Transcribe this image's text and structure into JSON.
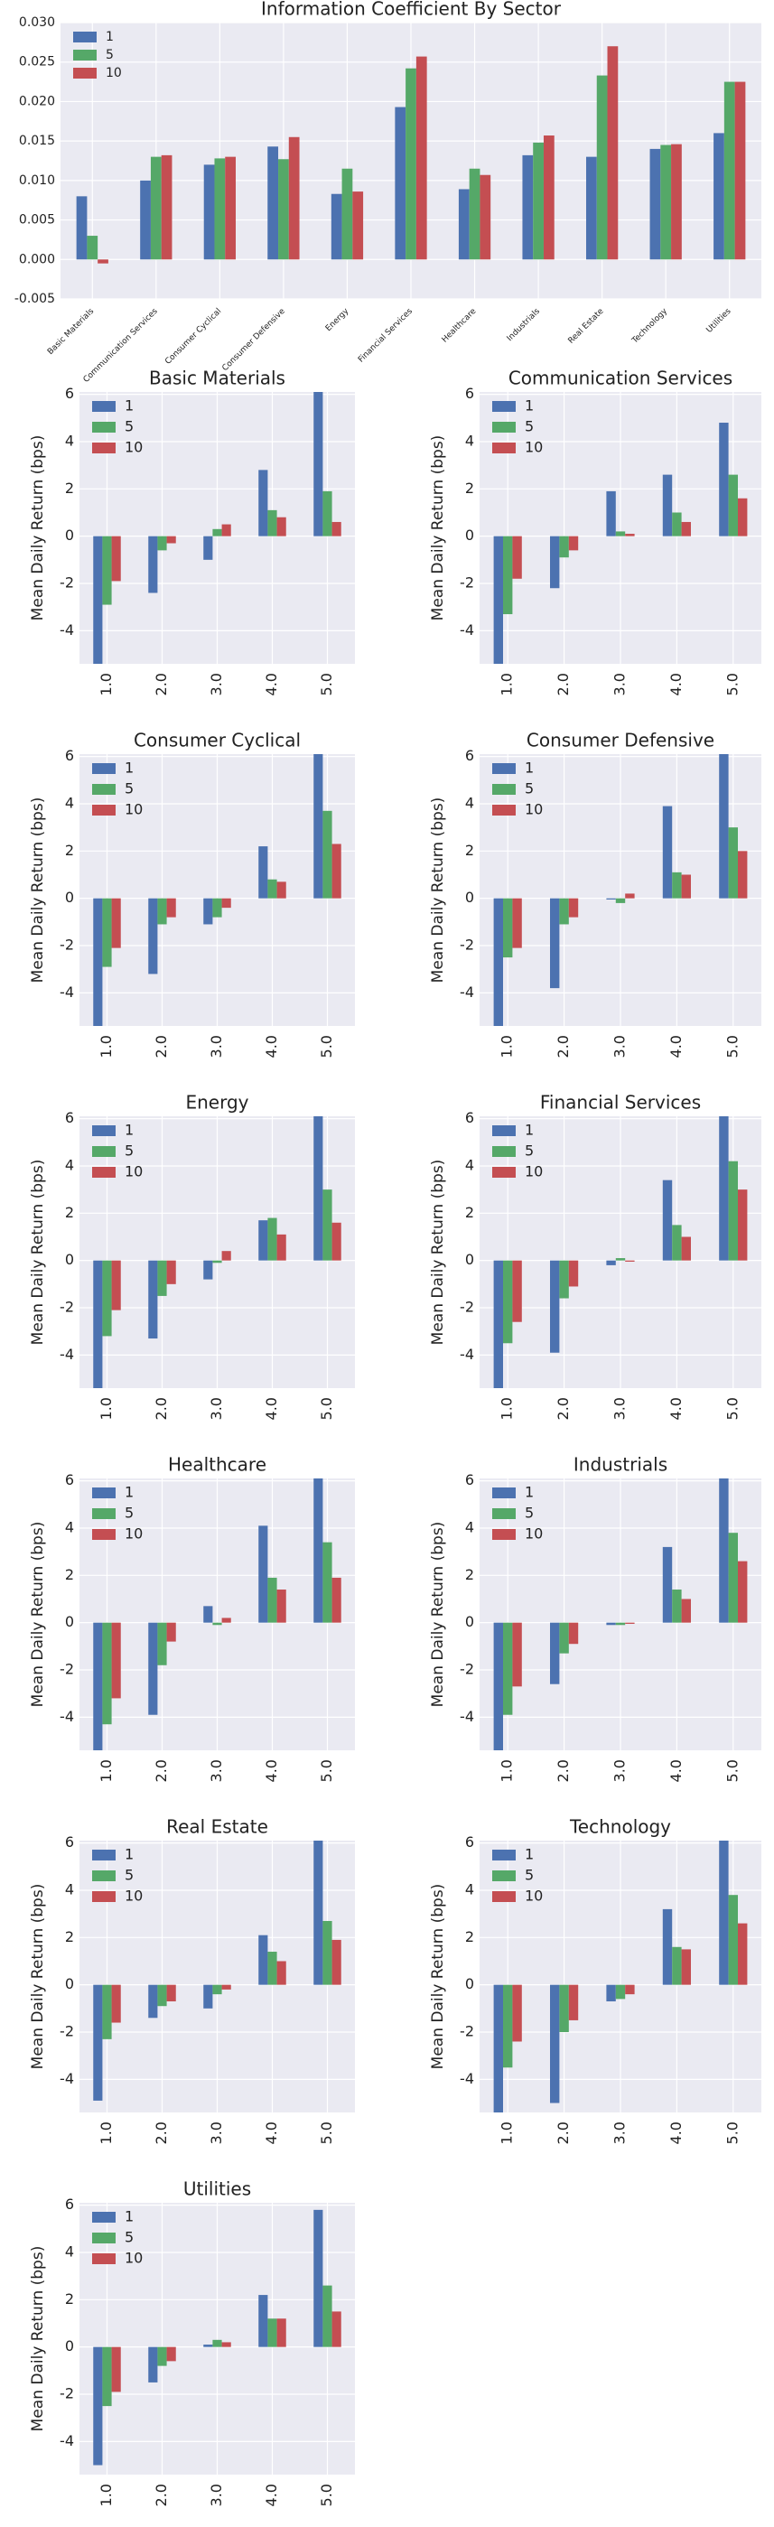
{
  "chart_data": [
    {
      "type": "bar",
      "title": "Information Coefficient By Sector",
      "categories": [
        "Basic Materials",
        "Communication Services",
        "Consumer Cyclical",
        "Consumer Defensive",
        "Energy",
        "Financial Services",
        "Healthcare",
        "Industrials",
        "Real Estate",
        "Technology",
        "Utilities"
      ],
      "series": [
        {
          "name": "1",
          "color": "#4c72b0",
          "values": [
            0.008,
            0.01,
            0.012,
            0.0143,
            0.0083,
            0.0193,
            0.0089,
            0.0132,
            0.013,
            0.014,
            0.016
          ]
        },
        {
          "name": "5",
          "color": "#55a868",
          "values": [
            0.003,
            0.013,
            0.0128,
            0.0127,
            0.0115,
            0.0242,
            0.0115,
            0.0148,
            0.0233,
            0.0145,
            0.0225
          ]
        },
        {
          "name": "10",
          "color": "#c44e52",
          "values": [
            -0.0005,
            0.0132,
            0.013,
            0.0155,
            0.0086,
            0.0257,
            0.0107,
            0.0157,
            0.027,
            0.0146,
            0.0225
          ]
        }
      ],
      "ylim": [
        -0.005,
        0.03
      ],
      "yticks": [
        -0.005,
        {
          "value": 0,
          "label": "0.000"
        },
        0.005,
        {
          "value": 0.01,
          "label": "0.010"
        },
        0.015,
        {
          "value": 0.02,
          "label": "0.020"
        },
        0.025,
        {
          "value": 0.03,
          "label": "0.030"
        }
      ],
      "grid": true,
      "legend": "upper left"
    },
    {
      "type": "bar",
      "title": "Basic Materials",
      "ylabel": "Mean Daily Return (bps)",
      "categories": [
        "1.0",
        "2.0",
        "3.0",
        "4.0",
        "5.0"
      ],
      "series": [
        {
          "name": "1",
          "color": "#4c72b0",
          "values": [
            -5.5,
            -2.4,
            -1.0,
            2.8,
            6.5
          ]
        },
        {
          "name": "5",
          "color": "#55a868",
          "values": [
            -2.9,
            -0.6,
            0.3,
            1.1,
            1.9
          ]
        },
        {
          "name": "10",
          "color": "#c44e52",
          "values": [
            -1.9,
            -0.3,
            0.5,
            0.8,
            0.6
          ]
        }
      ],
      "ylim": [
        -5.4,
        6.1
      ],
      "yticks": [
        -4,
        -2,
        0,
        2,
        4,
        6
      ],
      "grid": true,
      "legend": "upper left"
    },
    {
      "type": "bar",
      "title": "Communication Services",
      "ylabel": "Mean Daily Return (bps)",
      "categories": [
        "1.0",
        "2.0",
        "3.0",
        "4.0",
        "5.0"
      ],
      "series": [
        {
          "name": "1",
          "color": "#4c72b0",
          "values": [
            -5.5,
            -2.2,
            1.9,
            2.6,
            4.8
          ]
        },
        {
          "name": "5",
          "color": "#55a868",
          "values": [
            -3.3,
            -0.9,
            0.2,
            1.0,
            2.6
          ]
        },
        {
          "name": "10",
          "color": "#c44e52",
          "values": [
            -1.8,
            -0.6,
            0.1,
            0.6,
            1.6
          ]
        }
      ],
      "ylim": [
        -5.4,
        6.1
      ],
      "yticks": [
        -4,
        -2,
        0,
        2,
        4,
        6
      ],
      "grid": true,
      "legend": "upper left"
    },
    {
      "type": "bar",
      "title": "Consumer Cyclical",
      "ylabel": "Mean Daily Return (bps)",
      "categories": [
        "1.0",
        "2.0",
        "3.0",
        "4.0",
        "5.0"
      ],
      "series": [
        {
          "name": "1",
          "color": "#4c72b0",
          "values": [
            -5.5,
            -3.2,
            -1.1,
            2.2,
            6.5
          ]
        },
        {
          "name": "5",
          "color": "#55a868",
          "values": [
            -2.9,
            -1.1,
            -0.8,
            0.8,
            3.7
          ]
        },
        {
          "name": "10",
          "color": "#c44e52",
          "values": [
            -2.1,
            -0.8,
            -0.4,
            0.7,
            2.3
          ]
        }
      ],
      "ylim": [
        -5.4,
        6.1
      ],
      "yticks": [
        -4,
        -2,
        0,
        2,
        4,
        6
      ],
      "grid": true,
      "legend": "upper left"
    },
    {
      "type": "bar",
      "title": "Consumer Defensive",
      "ylabel": "Mean Daily Return (bps)",
      "categories": [
        "1.0",
        "2.0",
        "3.0",
        "4.0",
        "5.0"
      ],
      "series": [
        {
          "name": "1",
          "color": "#4c72b0",
          "values": [
            -5.5,
            -3.8,
            -0.05,
            3.9,
            6.5
          ]
        },
        {
          "name": "5",
          "color": "#55a868",
          "values": [
            -2.5,
            -1.1,
            -0.2,
            1.1,
            3.0
          ]
        },
        {
          "name": "10",
          "color": "#c44e52",
          "values": [
            -2.1,
            -0.8,
            0.2,
            1.0,
            2.0
          ]
        }
      ],
      "ylim": [
        -5.4,
        6.1
      ],
      "yticks": [
        -4,
        -2,
        0,
        2,
        4,
        6
      ],
      "grid": true,
      "legend": "upper left"
    },
    {
      "type": "bar",
      "title": "Energy",
      "ylabel": "Mean Daily Return (bps)",
      "categories": [
        "1.0",
        "2.0",
        "3.0",
        "4.0",
        "5.0"
      ],
      "series": [
        {
          "name": "1",
          "color": "#4c72b0",
          "values": [
            -5.5,
            -3.3,
            -0.8,
            1.7,
            6.5
          ]
        },
        {
          "name": "5",
          "color": "#55a868",
          "values": [
            -3.2,
            -1.5,
            -0.1,
            1.8,
            3.0
          ]
        },
        {
          "name": "10",
          "color": "#c44e52",
          "values": [
            -2.1,
            -1.0,
            0.4,
            1.1,
            1.6
          ]
        }
      ],
      "ylim": [
        -5.4,
        6.1
      ],
      "yticks": [
        -4,
        -2,
        0,
        2,
        4,
        6
      ],
      "grid": true,
      "legend": "upper left"
    },
    {
      "type": "bar",
      "title": "Financial Services",
      "ylabel": "Mean Daily Return (bps)",
      "categories": [
        "1.0",
        "2.0",
        "3.0",
        "4.0",
        "5.0"
      ],
      "series": [
        {
          "name": "1",
          "color": "#4c72b0",
          "values": [
            -5.5,
            -3.9,
            -0.2,
            3.4,
            6.5
          ]
        },
        {
          "name": "5",
          "color": "#55a868",
          "values": [
            -3.5,
            -1.6,
            0.1,
            1.5,
            4.2
          ]
        },
        {
          "name": "10",
          "color": "#c44e52",
          "values": [
            -2.6,
            -1.1,
            -0.05,
            1.0,
            3.0
          ]
        }
      ],
      "ylim": [
        -5.4,
        6.1
      ],
      "yticks": [
        -4,
        -2,
        0,
        2,
        4,
        6
      ],
      "grid": true,
      "legend": "upper left"
    },
    {
      "type": "bar",
      "title": "Healthcare",
      "ylabel": "Mean Daily Return (bps)",
      "categories": [
        "1.0",
        "2.0",
        "3.0",
        "4.0",
        "5.0"
      ],
      "series": [
        {
          "name": "1",
          "color": "#4c72b0",
          "values": [
            -5.5,
            -3.9,
            0.7,
            4.1,
            6.5
          ]
        },
        {
          "name": "5",
          "color": "#55a868",
          "values": [
            -4.3,
            -1.8,
            -0.1,
            1.9,
            3.4
          ]
        },
        {
          "name": "10",
          "color": "#c44e52",
          "values": [
            -3.2,
            -0.8,
            0.2,
            1.4,
            1.9
          ]
        }
      ],
      "ylim": [
        -5.4,
        6.1
      ],
      "yticks": [
        -4,
        -2,
        0,
        2,
        4,
        6
      ],
      "grid": true,
      "legend": "upper left"
    },
    {
      "type": "bar",
      "title": "Industrials",
      "ylabel": "Mean Daily Return (bps)",
      "categories": [
        "1.0",
        "2.0",
        "3.0",
        "4.0",
        "5.0"
      ],
      "series": [
        {
          "name": "1",
          "color": "#4c72b0",
          "values": [
            -5.5,
            -2.6,
            -0.1,
            3.2,
            6.5
          ]
        },
        {
          "name": "5",
          "color": "#55a868",
          "values": [
            -3.9,
            -1.3,
            -0.1,
            1.4,
            3.8
          ]
        },
        {
          "name": "10",
          "color": "#c44e52",
          "values": [
            -2.7,
            -0.9,
            -0.05,
            1.0,
            2.6
          ]
        }
      ],
      "ylim": [
        -5.4,
        6.1
      ],
      "yticks": [
        -4,
        -2,
        0,
        2,
        4,
        6
      ],
      "grid": true,
      "legend": "upper left"
    },
    {
      "type": "bar",
      "title": "Real Estate",
      "ylabel": "Mean Daily Return (bps)",
      "categories": [
        "1.0",
        "2.0",
        "3.0",
        "4.0",
        "5.0"
      ],
      "series": [
        {
          "name": "1",
          "color": "#4c72b0",
          "values": [
            -4.9,
            -1.4,
            -1.0,
            2.1,
            6.5
          ]
        },
        {
          "name": "5",
          "color": "#55a868",
          "values": [
            -2.3,
            -0.9,
            -0.4,
            1.4,
            2.7
          ]
        },
        {
          "name": "10",
          "color": "#c44e52",
          "values": [
            -1.6,
            -0.7,
            -0.2,
            1.0,
            1.9
          ]
        }
      ],
      "ylim": [
        -5.4,
        6.1
      ],
      "yticks": [
        -4,
        -2,
        0,
        2,
        4,
        6
      ],
      "grid": true,
      "legend": "upper left"
    },
    {
      "type": "bar",
      "title": "Technology",
      "ylabel": "Mean Daily Return (bps)",
      "categories": [
        "1.0",
        "2.0",
        "3.0",
        "4.0",
        "5.0"
      ],
      "series": [
        {
          "name": "1",
          "color": "#4c72b0",
          "values": [
            -5.5,
            -5.0,
            -0.7,
            3.2,
            6.5
          ]
        },
        {
          "name": "5",
          "color": "#55a868",
          "values": [
            -3.5,
            -2.0,
            -0.6,
            1.6,
            3.8
          ]
        },
        {
          "name": "10",
          "color": "#c44e52",
          "values": [
            -2.4,
            -1.5,
            -0.4,
            1.5,
            2.6
          ]
        }
      ],
      "ylim": [
        -5.4,
        6.1
      ],
      "yticks": [
        -4,
        -2,
        0,
        2,
        4,
        6
      ],
      "grid": true,
      "legend": "upper left"
    },
    {
      "type": "bar",
      "title": "Utilities",
      "ylabel": "Mean Daily Return (bps)",
      "categories": [
        "1.0",
        "2.0",
        "3.0",
        "4.0",
        "5.0"
      ],
      "series": [
        {
          "name": "1",
          "color": "#4c72b0",
          "values": [
            -5.0,
            -1.5,
            0.1,
            2.2,
            5.8
          ]
        },
        {
          "name": "5",
          "color": "#55a868",
          "values": [
            -2.5,
            -0.8,
            0.3,
            1.2,
            2.6
          ]
        },
        {
          "name": "10",
          "color": "#c44e52",
          "values": [
            -1.9,
            -0.6,
            0.2,
            1.2,
            1.5
          ]
        }
      ],
      "ylim": [
        -5.4,
        6.1
      ],
      "yticks": [
        -4,
        -2,
        0,
        2,
        4,
        6
      ],
      "grid": true,
      "legend": "upper left"
    }
  ]
}
